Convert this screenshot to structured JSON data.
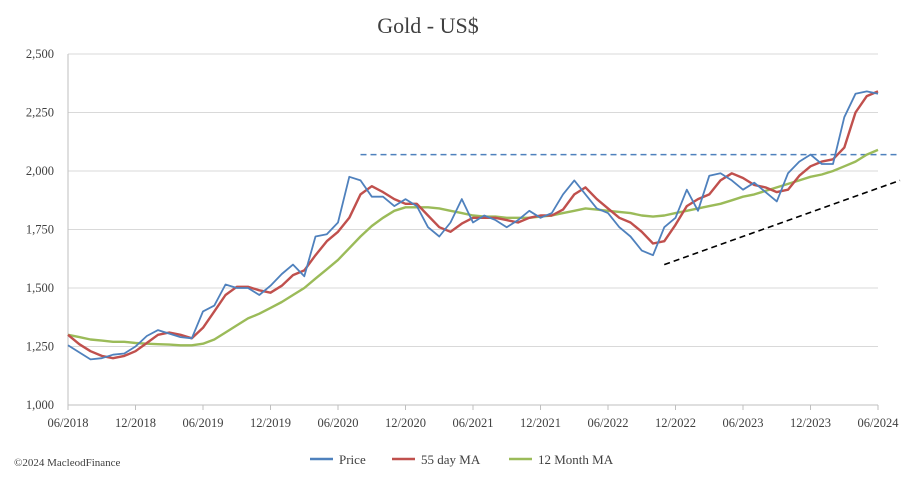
{
  "chart_data": {
    "type": "line",
    "title": "Gold - US$",
    "xlabel": "",
    "ylabel": "",
    "ylim": [
      1000,
      2500
    ],
    "yticks": [
      "1,000",
      "1,250",
      "1,500",
      "1,750",
      "2,000",
      "2,250",
      "2,500"
    ],
    "ytick_values": [
      1000,
      1250,
      1500,
      1750,
      2000,
      2250,
      2500
    ],
    "xlim": [
      "2018-06",
      "2024-06"
    ],
    "xticks": [
      "06/2018",
      "12/2018",
      "06/2019",
      "12/2019",
      "06/2020",
      "12/2020",
      "06/2021",
      "12/2021",
      "06/2022",
      "12/2022",
      "06/2023",
      "12/2023",
      "06/2024"
    ],
    "grid": "horizontal",
    "legend_position": "bottom",
    "x": [
      "2018-06",
      "2018-07",
      "2018-08",
      "2018-09",
      "2018-10",
      "2018-11",
      "2018-12",
      "2019-01",
      "2019-02",
      "2019-03",
      "2019-04",
      "2019-05",
      "2019-06",
      "2019-07",
      "2019-08",
      "2019-09",
      "2019-10",
      "2019-11",
      "2019-12",
      "2020-01",
      "2020-02",
      "2020-03",
      "2020-04",
      "2020-05",
      "2020-06",
      "2020-07",
      "2020-08",
      "2020-09",
      "2020-10",
      "2020-11",
      "2020-12",
      "2021-01",
      "2021-02",
      "2021-03",
      "2021-04",
      "2021-05",
      "2021-06",
      "2021-07",
      "2021-08",
      "2021-09",
      "2021-10",
      "2021-11",
      "2021-12",
      "2022-01",
      "2022-02",
      "2022-03",
      "2022-04",
      "2022-05",
      "2022-06",
      "2022-07",
      "2022-08",
      "2022-09",
      "2022-10",
      "2022-11",
      "2022-12",
      "2023-01",
      "2023-02",
      "2023-03",
      "2023-04",
      "2023-05",
      "2023-06",
      "2023-07",
      "2023-08",
      "2023-09",
      "2023-10",
      "2023-11",
      "2023-12",
      "2024-01",
      "2024-02",
      "2024-03",
      "2024-04",
      "2024-05",
      "2024-06"
    ],
    "series": [
      {
        "name": "Price",
        "color": "#4f81bd",
        "values": [
          1255,
          1225,
          1195,
          1200,
          1215,
          1220,
          1250,
          1295,
          1320,
          1305,
          1290,
          1285,
          1400,
          1425,
          1515,
          1500,
          1500,
          1470,
          1510,
          1560,
          1600,
          1550,
          1720,
          1730,
          1780,
          1975,
          1960,
          1890,
          1890,
          1850,
          1880,
          1850,
          1760,
          1720,
          1780,
          1880,
          1780,
          1810,
          1790,
          1760,
          1790,
          1830,
          1800,
          1820,
          1900,
          1960,
          1900,
          1840,
          1820,
          1760,
          1720,
          1660,
          1640,
          1760,
          1800,
          1920,
          1830,
          1980,
          1990,
          1960,
          1920,
          1950,
          1910,
          1870,
          1990,
          2040,
          2070,
          2030,
          2030,
          2230,
          2330,
          2340,
          2330
        ]
      },
      {
        "name": "55 day MA",
        "color": "#c0504d",
        "values": [
          1300,
          1260,
          1230,
          1210,
          1200,
          1210,
          1230,
          1265,
          1300,
          1310,
          1300,
          1285,
          1330,
          1400,
          1470,
          1505,
          1505,
          1490,
          1480,
          1510,
          1555,
          1575,
          1640,
          1700,
          1740,
          1800,
          1900,
          1935,
          1910,
          1880,
          1860,
          1860,
          1810,
          1760,
          1740,
          1775,
          1800,
          1800,
          1800,
          1790,
          1780,
          1800,
          1810,
          1810,
          1835,
          1900,
          1930,
          1880,
          1840,
          1800,
          1780,
          1740,
          1690,
          1700,
          1770,
          1850,
          1880,
          1900,
          1960,
          1990,
          1970,
          1940,
          1930,
          1910,
          1920,
          1980,
          2020,
          2040,
          2050,
          2100,
          2250,
          2320,
          2340
        ]
      },
      {
        "name": "12 Month MA",
        "color": "#9bbb59",
        "values": [
          1300,
          1290,
          1280,
          1275,
          1270,
          1270,
          1265,
          1262,
          1260,
          1258,
          1255,
          1255,
          1262,
          1280,
          1310,
          1340,
          1370,
          1390,
          1415,
          1440,
          1470,
          1500,
          1540,
          1580,
          1620,
          1670,
          1720,
          1765,
          1800,
          1830,
          1845,
          1845,
          1845,
          1840,
          1830,
          1820,
          1810,
          1805,
          1805,
          1800,
          1800,
          1800,
          1805,
          1810,
          1820,
          1830,
          1840,
          1835,
          1830,
          1825,
          1820,
          1810,
          1805,
          1810,
          1820,
          1830,
          1840,
          1850,
          1860,
          1875,
          1890,
          1900,
          1915,
          1930,
          1945,
          1960,
          1975,
          1985,
          2000,
          2020,
          2040,
          2070,
          2090
        ]
      }
    ],
    "trendlines": [
      {
        "style": "dashed",
        "color": "#4f81bd",
        "x": [
          "2020-08",
          "2024-06"
        ],
        "y": [
          2070,
          2070
        ]
      },
      {
        "style": "dashed",
        "color": "#000000",
        "x": [
          "2022-11",
          "2024-06"
        ],
        "y": [
          1600,
          1960
        ]
      }
    ]
  },
  "legend": {
    "price": "Price",
    "ma55": "55 day MA",
    "ma12": "12 Month MA"
  },
  "credit": "©2024 MacleodFinance"
}
